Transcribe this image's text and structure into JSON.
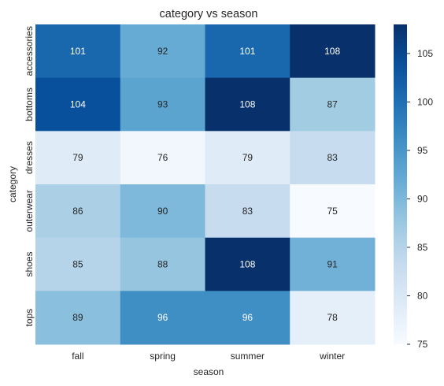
{
  "chart_data": {
    "type": "heatmap",
    "title": "category vs season",
    "xlabel": "season",
    "ylabel": "category",
    "x_categories": [
      "fall",
      "spring",
      "summer",
      "winter"
    ],
    "y_categories": [
      "accessories",
      "bottoms",
      "dresses",
      "outerwear",
      "shoes",
      "tops"
    ],
    "values": [
      [
        101,
        92,
        101,
        108
      ],
      [
        104,
        93,
        108,
        87
      ],
      [
        79,
        76,
        79,
        83
      ],
      [
        86,
        90,
        83,
        75
      ],
      [
        85,
        88,
        108,
        91
      ],
      [
        89,
        96,
        96,
        78
      ]
    ],
    "colormap": "Blues",
    "vmin": 75,
    "vmax": 108,
    "colorbar_ticks": [
      75,
      80,
      85,
      90,
      95,
      100,
      105
    ],
    "colors": {
      "low": "#f7fbff",
      "high": "#08306b",
      "text_dark": "#262626",
      "text_light": "#ffffff"
    }
  }
}
